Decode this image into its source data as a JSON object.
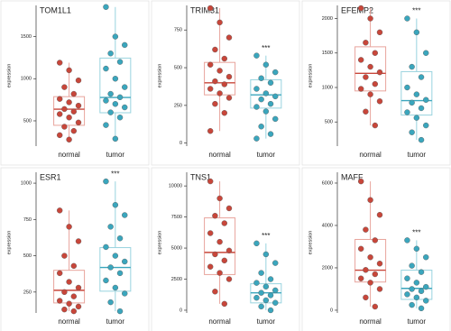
{
  "chart_data": [
    {
      "type": "box",
      "title": "TOM1L1",
      "ylabel": "expression",
      "categories": [
        "normal",
        "tumor"
      ],
      "annotation": "***",
      "ylim": [
        200,
        1870
      ],
      "yticks": [
        500,
        1000,
        1500
      ],
      "groups": [
        {
          "color": "#c8463a",
          "box_color": "#e8a49c",
          "box": [
            277,
            447,
            638,
            787,
            1190
          ],
          "points": [
            1190,
            1100,
            980,
            900,
            820,
            760,
            720,
            680,
            640,
            610,
            580,
            540,
            480,
            430,
            380,
            330,
            277
          ]
        },
        {
          "color": "#3aa6bd",
          "box_color": "#98d3de",
          "box": [
            287,
            596,
            777,
            1245,
            1851
          ],
          "points": [
            1851,
            1500,
            1400,
            1300,
            1200,
            1120,
            1000,
            900,
            820,
            780,
            740,
            700,
            660,
            600,
            540,
            450,
            287
          ]
        }
      ]
    },
    {
      "type": "box",
      "title": "TRIM31",
      "ylabel": "expression",
      "categories": [
        "normal",
        "tumor"
      ],
      "annotation": "***",
      "ylim": [
        -20,
        913
      ],
      "yticks": [
        0,
        250,
        500,
        750
      ],
      "groups": [
        {
          "color": "#c8463a",
          "box_color": "#e8a49c",
          "box": [
            80,
            320,
            400,
            535,
            895
          ],
          "points": [
            895,
            800,
            700,
            620,
            560,
            520,
            480,
            440,
            410,
            390,
            360,
            330,
            300,
            260,
            200,
            80
          ]
        },
        {
          "color": "#3aa6bd",
          "box_color": "#98d3de",
          "box": [
            30,
            232,
            320,
            420,
            580
          ],
          "points": [
            580,
            520,
            470,
            430,
            400,
            360,
            330,
            310,
            290,
            260,
            240,
            210,
            160,
            110,
            60,
            30
          ]
        }
      ]
    },
    {
      "type": "box",
      "title": "EFEMP2",
      "ylabel": "expression",
      "categories": [
        "normal",
        "tumor"
      ],
      "annotation": "***",
      "ylim": [
        150,
        2190
      ],
      "yticks": [
        500,
        1000,
        1500,
        2000
      ],
      "groups": [
        {
          "color": "#c8463a",
          "box_color": "#e8a49c",
          "box": [
            450,
            950,
            1205,
            1590,
            2150
          ],
          "points": [
            2150,
            2000,
            1800,
            1650,
            1500,
            1400,
            1300,
            1220,
            1150,
            1050,
            980,
            900,
            800,
            650,
            450
          ]
        },
        {
          "color": "#3aa6bd",
          "box_color": "#98d3de",
          "box": [
            240,
            600,
            810,
            1230,
            2000
          ],
          "points": [
            2000,
            1800,
            1500,
            1300,
            1150,
            1000,
            900,
            820,
            780,
            700,
            640,
            560,
            450,
            350,
            240
          ]
        }
      ]
    },
    {
      "type": "box",
      "title": "ESR1",
      "ylabel": "expression",
      "categories": [
        "normal",
        "tumor"
      ],
      "annotation": "***",
      "ylim": [
        106,
        1075
      ],
      "yticks": [
        250,
        500,
        750,
        1000
      ],
      "groups": [
        {
          "color": "#c8463a",
          "box_color": "#e8a49c",
          "box": [
            118,
            175,
            262,
            400,
            812
          ],
          "points": [
            812,
            700,
            600,
            500,
            430,
            380,
            320,
            280,
            250,
            220,
            190,
            170,
            150,
            130,
            118
          ]
        },
        {
          "color": "#3aa6bd",
          "box_color": "#98d3de",
          "box": [
            118,
            256,
            419,
            556,
            1012
          ],
          "points": [
            1012,
            850,
            780,
            700,
            620,
            560,
            500,
            460,
            420,
            380,
            330,
            280,
            240,
            180,
            118
          ]
        }
      ]
    },
    {
      "type": "box",
      "title": "TNS1",
      "ylabel": "expression",
      "categories": [
        "normal",
        "tumor"
      ],
      "annotation": "***",
      "ylim": [
        -220,
        11100
      ],
      "yticks": [
        0,
        2500,
        5000,
        7500,
        10000
      ],
      "groups": [
        {
          "color": "#c8463a",
          "box_color": "#e8a49c",
          "box": [
            515,
            2870,
            4650,
            7430,
            10370
          ],
          "points": [
            10370,
            9000,
            8200,
            7600,
            7000,
            6200,
            5500,
            4800,
            4500,
            4000,
            3500,
            3000,
            2500,
            1500,
            515
          ]
        },
        {
          "color": "#3aa6bd",
          "box_color": "#98d3de",
          "box": [
            0,
            590,
            1400,
            2130,
            5380
          ],
          "points": [
            5380,
            4500,
            3800,
            3000,
            2500,
            2200,
            1900,
            1600,
            1400,
            1200,
            1000,
            800,
            600,
            300,
            0
          ]
        }
      ]
    },
    {
      "type": "box",
      "title": "MAFF",
      "ylabel": "expression",
      "categories": [
        "normal",
        "tumor"
      ],
      "annotation": "***",
      "ylim": [
        -130,
        6510
      ],
      "yticks": [
        0,
        2000,
        4000,
        6000
      ],
      "groups": [
        {
          "color": "#c8463a",
          "box_color": "#e8a49c",
          "box": [
            170,
            1330,
            1890,
            3340,
            6080
          ],
          "points": [
            6080,
            5200,
            4500,
            3800,
            3300,
            2900,
            2500,
            2200,
            1900,
            1700,
            1500,
            1300,
            1000,
            600,
            170
          ]
        },
        {
          "color": "#3aa6bd",
          "box_color": "#98d3de",
          "box": [
            90,
            510,
            1030,
            1890,
            3300
          ],
          "points": [
            3300,
            2900,
            2500,
            2100,
            1800,
            1500,
            1300,
            1100,
            1000,
            900,
            750,
            600,
            450,
            250,
            90
          ]
        }
      ]
    }
  ]
}
